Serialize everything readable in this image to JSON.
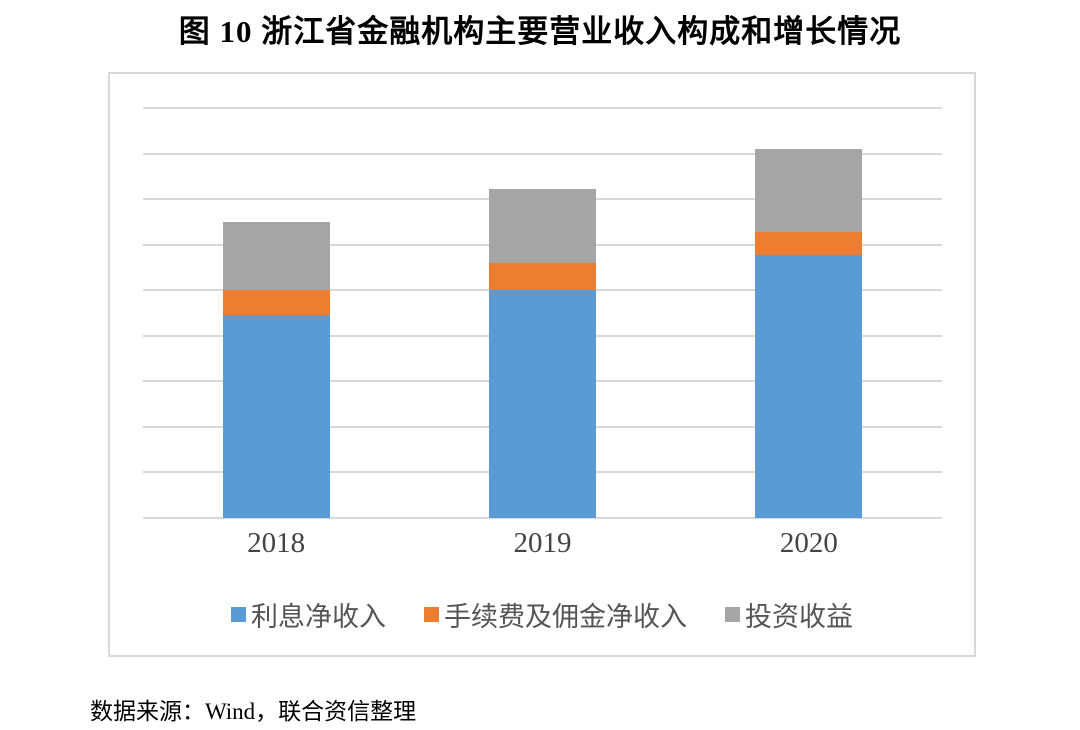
{
  "title": "图 10  浙江省金融机构主要营业收入构成和增长情况",
  "source_note": "数据来源：Wind，联合资信整理",
  "colors": {
    "interest_income": "#5B9BD5",
    "fee_commission_income": "#ED7D31",
    "investment_income": "#A5A5A5",
    "gridline": "#D9D9D9",
    "frame_border": "#D9D9D9",
    "axis_label": "#444444",
    "legend_label": "#555555"
  },
  "chart_data": {
    "type": "bar",
    "stacked": true,
    "title": "图 10  浙江省金融机构主要营业收入构成和增长情况",
    "categories": [
      "2018",
      "2019",
      "2020"
    ],
    "series": [
      {
        "name": "利息净收入",
        "color": "#5B9BD5",
        "values": [
          4.45,
          5.0,
          5.77
        ]
      },
      {
        "name": "手续费及佣金净收入",
        "color": "#ED7D31",
        "values": [
          0.55,
          0.59,
          0.51
        ]
      },
      {
        "name": "投资收益",
        "color": "#A5A5A5",
        "values": [
          1.49,
          1.64,
          1.83
        ]
      }
    ],
    "stack_totals": [
      6.49,
      7.23,
      8.11
    ],
    "xlabel": "",
    "ylabel": "",
    "ylim": [
      0,
      9
    ],
    "gridline_count": 10,
    "y_axis_tick_labels": "none (axis unlabeled; values measured in gridline-interval units)",
    "grid": "horizontal",
    "legend_position": "bottom"
  }
}
